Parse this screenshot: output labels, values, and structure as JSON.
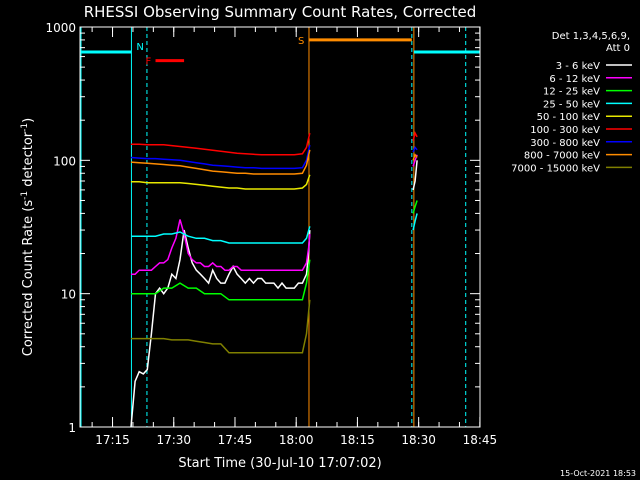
{
  "chart_data": {
    "type": "line",
    "title": "RHESSI Observing Summary Count Rates, Corrected",
    "xlabel": "Start Time (30-Jul-10 17:07:02)",
    "ylabel_main": "Corrected Count Rate (s",
    "ylabel_sup1": "-1",
    "ylabel_mid": " detector",
    "ylabel_sup2": "-1",
    "ylabel_end": ")",
    "footer": "15-Oct-2021 18:53",
    "xlim": [
      0,
      98
    ],
    "x_time_start": "17:07:02",
    "ylim": [
      1,
      1000
    ],
    "yscale": "log",
    "x_ticks": [
      {
        "pos": 7.97,
        "label": "17:15"
      },
      {
        "pos": 22.97,
        "label": "17:30"
      },
      {
        "pos": 37.97,
        "label": "17:45"
      },
      {
        "pos": 52.97,
        "label": "18:00"
      },
      {
        "pos": 67.97,
        "label": "18:15"
      },
      {
        "pos": 82.97,
        "label": "18:30"
      },
      {
        "pos": 97.97,
        "label": "18:45"
      }
    ],
    "y_ticks": [
      {
        "value": 1,
        "label": "1"
      },
      {
        "value": 10,
        "label": "10"
      },
      {
        "value": 100,
        "label": "100"
      },
      {
        "value": 1000,
        "label": "1000"
      }
    ],
    "legend": {
      "header": [
        "Det 1,3,4,5,6,9,",
        "Att 0"
      ],
      "placement": "right",
      "entries": [
        {
          "label": "3 - 6 keV",
          "color": "#ffffff"
        },
        {
          "label": "6 - 12 keV",
          "color": "#ff00ff"
        },
        {
          "label": "12 - 25 keV",
          "color": "#00ff00"
        },
        {
          "label": "25 - 50 keV",
          "color": "#00ffff"
        },
        {
          "label": "50 - 100 keV",
          "color": "#e8e800"
        },
        {
          "label": "100 - 300 keV",
          "color": "#ff0000"
        },
        {
          "label": "300 - 800 keV",
          "color": "#0000ff"
        },
        {
          "label": "800 - 7000 keV",
          "color": "#ff8c00"
        },
        {
          "label": "7000 - 15000 keV",
          "color": "#808000"
        }
      ]
    },
    "series": [
      {
        "band": "3 - 6 keV",
        "color": "#ffffff",
        "x": [
          12.5,
          13.5,
          14.5,
          15.5,
          16.5,
          17.5,
          18.5,
          19.5,
          20.5,
          21.5,
          22.5,
          23.5,
          24.5,
          25.5,
          26.5,
          27.5,
          28.5,
          29.5,
          30.5,
          31.5,
          32.5,
          33.5,
          34.5,
          35.5,
          36.5,
          37.5,
          38.5,
          39.5,
          40.5,
          41.5,
          42.5,
          43.5,
          44.5,
          45.5,
          46.5,
          47.5,
          48.5,
          49.5,
          50.5,
          51.5,
          52.5,
          53.5,
          54.5,
          55,
          55.5,
          56,
          56.3
        ],
        "y": [
          1,
          2.2,
          2.6,
          2.5,
          2.7,
          5,
          10,
          11,
          10,
          11,
          14,
          13,
          18,
          30,
          22,
          17,
          15,
          14,
          13,
          12,
          15,
          13,
          12,
          12,
          14,
          16,
          14,
          13,
          12,
          13,
          12,
          13,
          13,
          12,
          12,
          12,
          11,
          12,
          11,
          11,
          11,
          12,
          12,
          13,
          14,
          20,
          30
        ]
      },
      {
        "band": "6 - 12 keV",
        "color": "#ff00ff",
        "x": [
          12.5,
          13.5,
          14.5,
          15.5,
          16.5,
          17.5,
          18.5,
          19.5,
          20.5,
          21.5,
          22.5,
          23.5,
          24.5,
          25.5,
          26.5,
          27.5,
          28.5,
          29.5,
          30.5,
          31.5,
          32.5,
          33.5,
          34.5,
          35.5,
          36.5,
          37.5,
          38.5,
          39.5,
          40.5,
          41.5,
          42.5,
          43.5,
          44.5,
          45.5,
          46.5,
          47.5,
          48.5,
          49.5,
          50.5,
          51.5,
          52.5,
          53.5,
          54.5,
          55,
          55.5,
          56,
          56.3
        ],
        "y": [
          14,
          14,
          15,
          15,
          15,
          15,
          16,
          17,
          17,
          18,
          22,
          26,
          36,
          28,
          20,
          18,
          17,
          17,
          16,
          16,
          17,
          16,
          16,
          15,
          15,
          16,
          16,
          15,
          15,
          15,
          15,
          15,
          15,
          15,
          15,
          15,
          15,
          15,
          15,
          15,
          15,
          15,
          15,
          16,
          17,
          22,
          28
        ]
      },
      {
        "band": "12 - 25 keV",
        "color": "#00ff00",
        "x": [
          12.5,
          14.5,
          16.5,
          18.5,
          20.5,
          22.5,
          24.5,
          26.5,
          28.5,
          30.5,
          32.5,
          34.5,
          36.5,
          38.5,
          40.5,
          42.5,
          44.5,
          46.5,
          48.5,
          50.5,
          52.5,
          54.5,
          55.5,
          56.3
        ],
        "y": [
          10,
          10,
          10,
          10,
          11,
          11,
          12,
          11,
          11,
          10,
          10,
          10,
          9,
          9,
          9,
          9,
          9,
          9,
          9,
          9,
          9,
          9,
          12,
          18
        ]
      },
      {
        "band": "25 - 50 keV",
        "color": "#00ffff",
        "x": [
          12.5,
          14.5,
          16.5,
          18.5,
          20.5,
          22.5,
          24.5,
          26.5,
          28.5,
          30.5,
          32.5,
          34.5,
          36.5,
          38.5,
          40.5,
          42.5,
          44.5,
          46.5,
          48.5,
          50.5,
          52.5,
          54.5,
          55.5,
          56.3
        ],
        "y": [
          27,
          27,
          27,
          27,
          28,
          28,
          29,
          27,
          26,
          26,
          25,
          25,
          24,
          24,
          24,
          24,
          24,
          24,
          24,
          24,
          24,
          24,
          26,
          32
        ]
      },
      {
        "band": "50 - 100 keV",
        "color": "#e8e800",
        "x": [
          12.5,
          14.5,
          16.5,
          18.5,
          20.5,
          22.5,
          24.5,
          26.5,
          28.5,
          30.5,
          32.5,
          34.5,
          36.5,
          38.5,
          40.5,
          42.5,
          44.5,
          46.5,
          48.5,
          50.5,
          52.5,
          54.5,
          55.5,
          56.3
        ],
        "y": [
          69,
          69,
          68,
          68,
          68,
          68,
          68,
          67,
          66,
          65,
          64,
          63,
          62,
          62,
          61,
          61,
          61,
          61,
          61,
          61,
          61,
          62,
          66,
          78
        ]
      },
      {
        "band": "100 - 300 keV",
        "color": "#ff0000",
        "x": [
          12.5,
          14.5,
          16.5,
          18.5,
          20.5,
          22.5,
          24.5,
          26.5,
          28.5,
          30.5,
          32.5,
          34.5,
          36.5,
          38.5,
          40.5,
          42.5,
          44.5,
          46.5,
          48.5,
          50.5,
          52.5,
          54.5,
          55.5,
          56.3
        ],
        "y": [
          132,
          132,
          131,
          131,
          131,
          129,
          127,
          125,
          123,
          121,
          119,
          117,
          115,
          113,
          112,
          111,
          110,
          110,
          110,
          110,
          110,
          112,
          125,
          160
        ]
      },
      {
        "band": "300 - 800 keV",
        "color": "#0000ff",
        "x": [
          12.5,
          14.5,
          16.5,
          18.5,
          20.5,
          22.5,
          24.5,
          26.5,
          28.5,
          30.5,
          32.5,
          34.5,
          36.5,
          38.5,
          40.5,
          42.5,
          44.5,
          46.5,
          48.5,
          50.5,
          52.5,
          54.5,
          55.5,
          56.3
        ],
        "y": [
          105,
          104,
          103,
          103,
          102,
          101,
          100,
          98,
          96,
          94,
          92,
          91,
          90,
          89,
          88,
          88,
          87,
          87,
          87,
          87,
          87,
          88,
          100,
          130
        ]
      },
      {
        "band": "800 - 7000 keV",
        "color": "#ff8c00",
        "x": [
          12.5,
          14.5,
          16.5,
          18.5,
          20.5,
          22.5,
          24.5,
          26.5,
          28.5,
          30.5,
          32.5,
          34.5,
          36.5,
          38.5,
          40.5,
          42.5,
          44.5,
          46.5,
          48.5,
          50.5,
          52.5,
          54.5,
          55.5,
          56.3
        ],
        "y": [
          97,
          96,
          95,
          94,
          93,
          92,
          91,
          89,
          87,
          85,
          83,
          82,
          81,
          80,
          80,
          79,
          79,
          79,
          79,
          79,
          79,
          80,
          92,
          120
        ]
      },
      {
        "band": "7000 - 15000 keV",
        "color": "#808000",
        "x": [
          12.5,
          14.5,
          16.5,
          18.5,
          20.5,
          22.5,
          24.5,
          26.5,
          28.5,
          30.5,
          32.5,
          34.5,
          36.5,
          38.5,
          40.5,
          42.5,
          44.5,
          46.5,
          48.5,
          50.5,
          52.5,
          54.5,
          55.5,
          56.3
        ],
        "y": [
          4.6,
          4.6,
          4.6,
          4.6,
          4.6,
          4.5,
          4.5,
          4.5,
          4.4,
          4.3,
          4.2,
          4.2,
          3.6,
          3.6,
          3.6,
          3.6,
          3.6,
          3.6,
          3.6,
          3.6,
          3.6,
          3.6,
          5,
          9
        ]
      },
      {
        "band": "3 - 6 keV",
        "color": "#ffffff",
        "x": [
          81.6,
          82.1,
          82.6
        ],
        "y": [
          60,
          70,
          100
        ]
      },
      {
        "band": "6 - 12 keV",
        "color": "#ff00ff",
        "x": [
          81.6,
          82.1,
          82.6
        ],
        "y": [
          90,
          100,
          110
        ]
      },
      {
        "band": "12 - 25 keV",
        "color": "#00ff00",
        "x": [
          81.6,
          82.1,
          82.6
        ],
        "y": [
          40,
          45,
          50
        ]
      },
      {
        "band": "25 - 50 keV",
        "color": "#00ffff",
        "x": [
          81.6,
          82.1,
          82.6
        ],
        "y": [
          30,
          35,
          40
        ]
      },
      {
        "band": "100 - 300 keV",
        "color": "#ff0000",
        "x": [
          81.6,
          82.1,
          82.6
        ],
        "y": [
          140,
          160,
          150
        ]
      },
      {
        "band": "300 - 800 keV",
        "color": "#0000ff",
        "x": [
          81.6,
          82.1,
          82.6
        ],
        "y": [
          115,
          125,
          120
        ]
      },
      {
        "band": "800 - 7000 keV",
        "color": "#ff8c00",
        "x": [
          81.6,
          82.1,
          82.6
        ],
        "y": [
          100,
          110,
          105
        ]
      }
    ],
    "vlines": [
      {
        "x": 0.25,
        "color": "#00ffff",
        "dashed": false
      },
      {
        "x": 12.6,
        "color": "#00ffff",
        "dashed": false
      },
      {
        "x": 16.4,
        "color": "#00ffff",
        "dashed": true
      },
      {
        "x": 56.1,
        "color": "#ff8c00",
        "dashed": false
      },
      {
        "x": 81.3,
        "color": "#00ffff",
        "dashed": true
      },
      {
        "x": 81.8,
        "color": "#ff8c00",
        "dashed": false
      },
      {
        "x": 94.5,
        "color": "#00ffff",
        "dashed": true
      }
    ],
    "flags": [
      {
        "label": "N",
        "color": "#00ffff",
        "segments": [
          [
            0.25,
            12.6
          ],
          [
            81.8,
            98
          ]
        ],
        "level": 650
      },
      {
        "label": "F",
        "color": "#ff0000",
        "segments": [
          [
            18.5,
            25.5
          ]
        ],
        "level": 560
      },
      {
        "label": "S",
        "color": "#ff8c00",
        "segments": [
          [
            56.1,
            81.3
          ]
        ],
        "level": 800
      }
    ]
  }
}
